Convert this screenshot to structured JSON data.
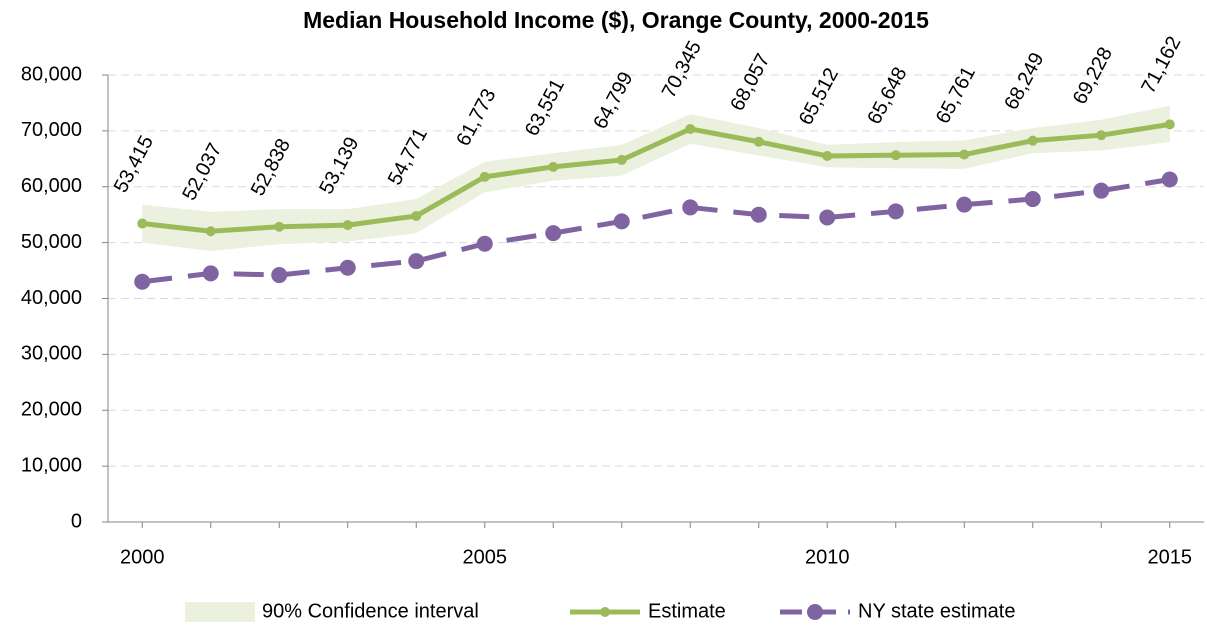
{
  "chart_data": {
    "type": "line",
    "title": "Median Household Income ($), Orange County, 2000-2015",
    "x": [
      2000,
      2001,
      2002,
      2003,
      2004,
      2005,
      2006,
      2007,
      2008,
      2009,
      2010,
      2011,
      2012,
      2013,
      2014,
      2015
    ],
    "xlim": [
      1999.5,
      2015.5
    ],
    "xticks": [
      2000,
      2005,
      2010,
      2015
    ],
    "ylim": [
      0,
      80000
    ],
    "yticks": [
      0,
      {
        "value": 10000,
        "label": "10,000"
      },
      {
        "value": 20000,
        "label": "20,000"
      },
      {
        "value": 30000,
        "label": "30,000"
      },
      {
        "value": 40000,
        "label": "40,000"
      },
      {
        "value": 50000,
        "label": "50,000"
      },
      {
        "value": 60000,
        "label": "60,000"
      },
      {
        "value": 70000,
        "label": "70,000"
      },
      {
        "value": 80000,
        "label": "80,000"
      }
    ],
    "grid": true,
    "band": {
      "name": "90% Confidence interval",
      "color": "#ebf1de",
      "upper": [
        56800,
        55500,
        56000,
        56000,
        57800,
        64500,
        66000,
        67500,
        73000,
        70500,
        67500,
        68000,
        68300,
        70500,
        72000,
        74500
      ],
      "lower": [
        50000,
        48500,
        49700,
        50200,
        51700,
        59000,
        61100,
        62000,
        67700,
        65600,
        63500,
        63300,
        63200,
        66000,
        66500,
        68000
      ]
    },
    "series": [
      {
        "name": "Estimate",
        "color": "#9bbb59",
        "values": [
          53415,
          52037,
          52838,
          53139,
          54771,
          61773,
          63551,
          64799,
          70345,
          68057,
          65512,
          65648,
          65761,
          68249,
          69228,
          71162
        ],
        "value_labels": [
          "53,415",
          "52,037",
          "52,838",
          "53,139",
          "54,771",
          "61,773",
          "63,551",
          "64,799",
          "70,345",
          "68,057",
          "65,512",
          "65,648",
          "65,761",
          "68,249",
          "69,228",
          "71,162"
        ]
      },
      {
        "name": "NY state estimate",
        "color": "#8064a2",
        "dashed": true,
        "values": [
          43000,
          44500,
          44200,
          45500,
          46700,
          49800,
          51700,
          53800,
          56300,
          55000,
          54500,
          55600,
          56800,
          57800,
          59300,
          61300
        ]
      }
    ]
  }
}
